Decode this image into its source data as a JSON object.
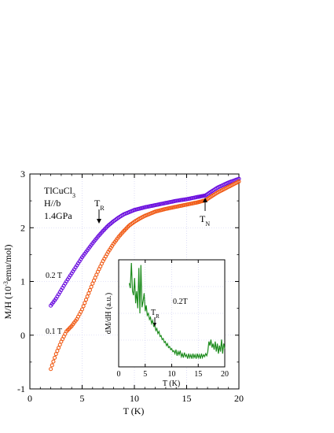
{
  "chart_data": [
    {
      "type": "line",
      "xlabel": "T (K)",
      "ylabel_main": "M/H (10",
      "ylabel_sup": "-3",
      "ylabel_rest": "emu/mol)",
      "xlim": [
        0,
        20
      ],
      "ylim": [
        -1,
        3
      ],
      "xticks": [
        "0",
        "5",
        "10",
        "15",
        "20"
      ],
      "yticks": [
        "-1",
        "0",
        "1",
        "2",
        "3"
      ],
      "grid": true,
      "annotations": {
        "compound": "TlCuCl",
        "compound_sub": "3",
        "field_dir": "H//b",
        "pressure": "1.4GPa",
        "tr_main": "T",
        "tr_sub": "R",
        "tn_main": "T",
        "tn_sub": "N"
      },
      "series": [
        {
          "name": "0.2 T",
          "color": "#6a0dde",
          "points": [
            [
              2.0,
              0.55
            ],
            [
              2.5,
              0.68
            ],
            [
              3.0,
              0.84
            ],
            [
              3.5,
              1.0
            ],
            [
              4.0,
              1.15
            ],
            [
              4.5,
              1.3
            ],
            [
              5.0,
              1.45
            ],
            [
              5.5,
              1.58
            ],
            [
              6.0,
              1.71
            ],
            [
              6.5,
              1.83
            ],
            [
              7.0,
              1.94
            ],
            [
              7.5,
              2.04
            ],
            [
              8.0,
              2.12
            ],
            [
              8.5,
              2.19
            ],
            [
              9.0,
              2.25
            ],
            [
              9.5,
              2.29
            ],
            [
              10.0,
              2.33
            ],
            [
              11.0,
              2.38
            ],
            [
              12.0,
              2.42
            ],
            [
              13.0,
              2.46
            ],
            [
              14.0,
              2.5
            ],
            [
              15.0,
              2.53
            ],
            [
              16.0,
              2.57
            ],
            [
              16.8,
              2.6
            ],
            [
              17.5,
              2.69
            ],
            [
              18.0,
              2.75
            ],
            [
              19.0,
              2.84
            ],
            [
              20.0,
              2.91
            ]
          ]
        },
        {
          "name": "0.1 T",
          "color": "#f05a14",
          "points": [
            [
              2.0,
              -0.63
            ],
            [
              2.5,
              -0.35
            ],
            [
              3.0,
              -0.12
            ],
            [
              3.5,
              0.07
            ],
            [
              4.0,
              0.17
            ],
            [
              4.5,
              0.3
            ],
            [
              5.0,
              0.48
            ],
            [
              5.5,
              0.72
            ],
            [
              6.0,
              0.96
            ],
            [
              6.5,
              1.18
            ],
            [
              7.0,
              1.38
            ],
            [
              7.5,
              1.55
            ],
            [
              8.0,
              1.7
            ],
            [
              8.5,
              1.83
            ],
            [
              9.0,
              1.94
            ],
            [
              9.5,
              2.04
            ],
            [
              10.0,
              2.11
            ],
            [
              10.5,
              2.17
            ],
            [
              11.0,
              2.22
            ],
            [
              12.0,
              2.3
            ],
            [
              13.0,
              2.35
            ],
            [
              14.0,
              2.39
            ],
            [
              15.0,
              2.43
            ],
            [
              16.0,
              2.47
            ],
            [
              16.8,
              2.51
            ],
            [
              17.5,
              2.6
            ],
            [
              18.0,
              2.66
            ],
            [
              19.0,
              2.76
            ],
            [
              20.0,
              2.86
            ]
          ]
        }
      ]
    },
    {
      "type": "line",
      "xlabel": "T (K)",
      "ylabel": "dM/dH (a.u.)",
      "xlim": [
        0,
        20
      ],
      "xticks": [
        "0",
        "5",
        "10",
        "15",
        "20"
      ],
      "grid": true,
      "annotations": {
        "field": "0.2T",
        "tr_main": "T",
        "tr_sub": "R"
      },
      "series": [
        {
          "color": "#1e8c1e",
          "points": [
            [
              2.0,
              0.8
            ],
            [
              2.2,
              0.75
            ],
            [
              2.4,
              1.0
            ],
            [
              2.6,
              0.72
            ],
            [
              2.8,
              0.68
            ],
            [
              3.0,
              0.85
            ],
            [
              3.2,
              0.6
            ],
            [
              3.4,
              0.72
            ],
            [
              3.6,
              0.55
            ],
            [
              3.8,
              0.95
            ],
            [
              4.0,
              0.5
            ],
            [
              4.2,
              0.98
            ],
            [
              4.4,
              0.56
            ],
            [
              4.6,
              0.62
            ],
            [
              4.8,
              0.7
            ],
            [
              5.0,
              0.52
            ],
            [
              5.2,
              0.58
            ],
            [
              5.4,
              0.48
            ],
            [
              5.6,
              0.5
            ],
            [
              5.8,
              0.44
            ],
            [
              6.0,
              0.46
            ],
            [
              6.2,
              0.4
            ],
            [
              6.4,
              0.43
            ],
            [
              6.6,
              0.37
            ],
            [
              6.8,
              0.38
            ],
            [
              7.0,
              0.33
            ],
            [
              7.2,
              0.35
            ],
            [
              7.4,
              0.3
            ],
            [
              7.6,
              0.32
            ],
            [
              7.8,
              0.27
            ],
            [
              8.0,
              0.28
            ],
            [
              8.2,
              0.24
            ],
            [
              8.4,
              0.25
            ],
            [
              8.6,
              0.21
            ],
            [
              8.8,
              0.22
            ],
            [
              9.0,
              0.18
            ],
            [
              9.2,
              0.2
            ],
            [
              9.4,
              0.16
            ],
            [
              9.6,
              0.17
            ],
            [
              9.8,
              0.14
            ],
            [
              10.0,
              0.15
            ],
            [
              10.2,
              0.12
            ],
            [
              10.4,
              0.13
            ],
            [
              10.6,
              0.1
            ],
            [
              10.8,
              0.14
            ],
            [
              11.0,
              0.08
            ],
            [
              11.2,
              0.12
            ],
            [
              11.4,
              0.09
            ],
            [
              11.6,
              0.13
            ],
            [
              11.8,
              0.07
            ],
            [
              12.0,
              0.1
            ],
            [
              12.2,
              0.06
            ],
            [
              12.4,
              0.11
            ],
            [
              12.6,
              0.07
            ],
            [
              12.8,
              0.09
            ],
            [
              13.0,
              0.05
            ],
            [
              13.2,
              0.1
            ],
            [
              13.4,
              0.06
            ],
            [
              13.6,
              0.09
            ],
            [
              13.8,
              0.05
            ],
            [
              14.0,
              0.1
            ],
            [
              14.2,
              0.06
            ],
            [
              14.4,
              0.09
            ],
            [
              14.6,
              0.05
            ],
            [
              14.8,
              0.1
            ],
            [
              15.0,
              0.06
            ],
            [
              15.2,
              0.09
            ],
            [
              15.4,
              0.05
            ],
            [
              15.6,
              0.1
            ],
            [
              15.8,
              0.06
            ],
            [
              16.0,
              0.09
            ],
            [
              16.2,
              0.07
            ],
            [
              16.4,
              0.1
            ],
            [
              16.6,
              0.08
            ],
            [
              16.8,
              0.12
            ],
            [
              17.0,
              0.22
            ],
            [
              17.2,
              0.18
            ],
            [
              17.4,
              0.24
            ],
            [
              17.6,
              0.16
            ],
            [
              17.8,
              0.2
            ],
            [
              18.0,
              0.14
            ],
            [
              18.2,
              0.22
            ],
            [
              18.4,
              0.12
            ],
            [
              18.6,
              0.2
            ],
            [
              18.8,
              0.1
            ],
            [
              19.0,
              0.18
            ],
            [
              19.2,
              0.12
            ],
            [
              19.4,
              0.24
            ],
            [
              19.6,
              0.1
            ],
            [
              19.8,
              0.2
            ],
            [
              20.0,
              0.15
            ]
          ]
        }
      ]
    }
  ]
}
